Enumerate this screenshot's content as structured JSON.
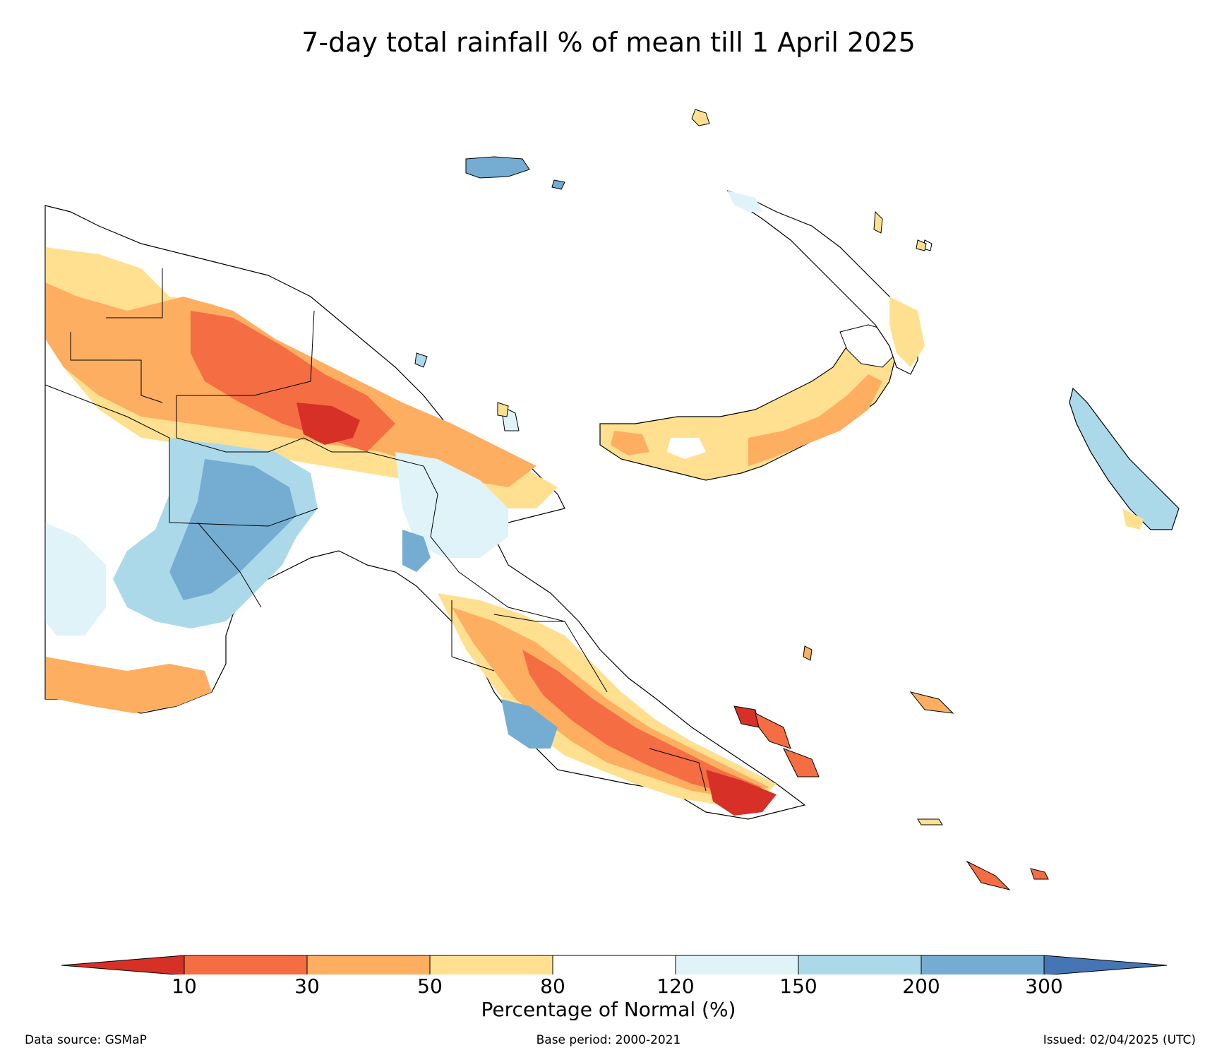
{
  "title": "7-day total rainfall % of mean till 1 April 2025",
  "colorbar": {
    "label": "Percentage of Normal (%)",
    "ticks": [
      "10",
      "30",
      "50",
      "80",
      "120",
      "150",
      "200",
      "300"
    ],
    "bins": [
      {
        "range": "<10",
        "color": "#d73027"
      },
      {
        "range": "10-30",
        "color": "#f46d43"
      },
      {
        "range": "30-50",
        "color": "#fdae61"
      },
      {
        "range": "50-80",
        "color": "#fee090"
      },
      {
        "range": "80-120",
        "color": "#ffffff"
      },
      {
        "range": "120-150",
        "color": "#e0f3f8"
      },
      {
        "range": "150-200",
        "color": "#abd9e9"
      },
      {
        "range": "200-300",
        "color": "#74add1"
      },
      {
        "range": ">300",
        "color": "#4575b4"
      }
    ]
  },
  "footer": {
    "data_source": "Data source: GSMaP",
    "base_period": "Base period: 2000-2021",
    "issued": "Issued: 02/04/2025 (UTC)"
  }
}
